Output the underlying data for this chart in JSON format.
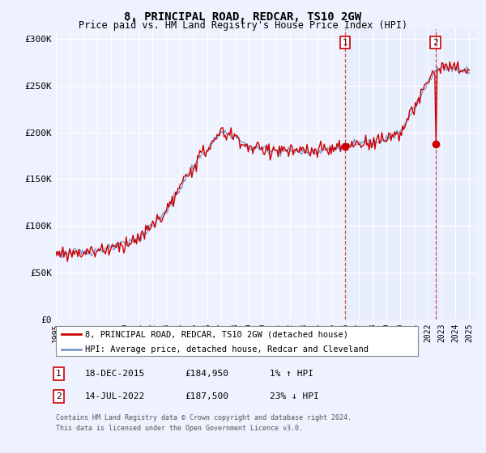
{
  "title": "8, PRINCIPAL ROAD, REDCAR, TS10 2GW",
  "subtitle": "Price paid vs. HM Land Registry's House Price Index (HPI)",
  "title_fontsize": 10,
  "subtitle_fontsize": 8.5,
  "ylabel_ticks": [
    "£0",
    "£50K",
    "£100K",
    "£150K",
    "£200K",
    "£250K",
    "£300K"
  ],
  "ytick_values": [
    0,
    50000,
    100000,
    150000,
    200000,
    250000,
    300000
  ],
  "ylim": [
    0,
    310000
  ],
  "xlim_start": 1995.0,
  "xlim_end": 2025.5,
  "sale1_date": "18-DEC-2015",
  "sale1_price": 184950,
  "sale1_year": 2015.96,
  "sale1_label": "1",
  "sale1_hpi_change": "1% ↑ HPI",
  "sale2_date": "14-JUL-2022",
  "sale2_price": 187500,
  "sale2_year": 2022.54,
  "sale2_label": "2",
  "sale2_hpi_change": "23% ↓ HPI",
  "line1_label": "8, PRINCIPAL ROAD, REDCAR, TS10 2GW (detached house)",
  "line2_label": "HPI: Average price, detached house, Redcar and Cleveland",
  "line1_color": "#cc0000",
  "line2_color": "#7799cc",
  "footer": "Contains HM Land Registry data © Crown copyright and database right 2024.\nThis data is licensed under the Open Government Licence v3.0.",
  "background_color": "#eef2ff",
  "highlight_color": "#dde8f8",
  "grid_color": "#ffffff"
}
